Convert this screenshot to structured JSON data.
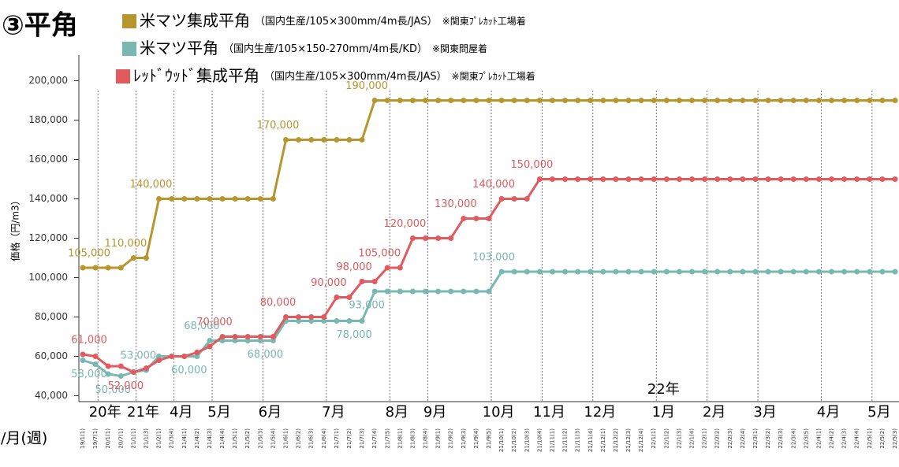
{
  "chart_data": {
    "type": "line",
    "title": "③平角",
    "y_label": "価格（円/m3）",
    "x_label": "年/月(週)",
    "categories": [
      "19/1(1)",
      "19/7(1)",
      "20/1(1)",
      "20/7(1)",
      "21/1(1)",
      "21/1(3)",
      "21/2(1)",
      "21/3(4)",
      "21/4(1)",
      "21/4(2)",
      "21/4(3)",
      "21/4(4)",
      "21/5(1)",
      "21/5(2)",
      "21/5(3)",
      "21/5(4)",
      "21/6(1)",
      "21/6(2)",
      "21/6(3)",
      "21/6(4)",
      "21/7(1)",
      "21/7(2)",
      "21/7(3)",
      "21/7(4)",
      "21/7(5)",
      "21/8(1)",
      "21/8(3)",
      "21/8(4)",
      "21/9(1)",
      "21/9(2)",
      "21/9(3)",
      "21/9(4)",
      "21/9(5)",
      "21/10(1)",
      "21/10(2)",
      "21/10(3)",
      "21/10(4)",
      "21/11(1)",
      "21/11(2)",
      "21/11(3)",
      "21/11(4)",
      "21/12(1)",
      "21/12(2)",
      "21/12(3)",
      "21/12(4)",
      "22/1(1)",
      "22/1(2)",
      "22/1(3)",
      "22/1(4)",
      "22/2(1)",
      "22/2(2)",
      "22/2(3)",
      "22/2(4)",
      "22/3(1)",
      "22/3(2)",
      "22/3(3)",
      "22/3(4)",
      "22/3(5)",
      "22/4(1)",
      "22/4(2)",
      "22/4(3)",
      "22/4(4)",
      "22/5(1)",
      "22/5(2)",
      "22/5(3)"
    ],
    "month_labels": [
      null,
      null,
      "20年",
      null,
      null,
      "21年",
      null,
      null,
      "4月",
      null,
      null,
      "5月",
      null,
      null,
      null,
      "6月",
      null,
      null,
      null,
      null,
      "7月",
      null,
      null,
      null,
      null,
      "8月",
      null,
      null,
      "9月",
      null,
      null,
      null,
      null,
      "10月",
      null,
      null,
      null,
      "11月",
      null,
      null,
      null,
      "12月",
      null,
      null,
      null,
      null,
      "1月",
      null,
      null,
      null,
      "2月",
      null,
      null,
      null,
      "3月",
      null,
      null,
      null,
      null,
      "4月",
      null,
      null,
      null,
      "5月",
      null,
      null
    ],
    "year_label": "22年",
    "ylim": [
      37000,
      213000
    ],
    "yticks": [
      {
        "value": 40000,
        "label": "40,000"
      },
      {
        "value": 60000,
        "label": "60,000"
      },
      {
        "value": 80000,
        "label": "80,000"
      },
      {
        "value": 100000,
        "label": "100,000"
      },
      {
        "value": 120000,
        "label": "120,000"
      },
      {
        "value": 140000,
        "label": "140,000"
      },
      {
        "value": 160000,
        "label": "160,000"
      },
      {
        "value": 180000,
        "label": "180,000"
      },
      {
        "value": 200000,
        "label": "200,000"
      }
    ],
    "vgrid": true,
    "series": [
      {
        "name": "米マツ集成平角",
        "spec": "（国内生産/105×300mm/4m長/JAS）",
        "note": "※関東ﾌﾟﾚｶｯﾄ工場着",
        "color": "#b8962e",
        "values": [
          105000,
          105000,
          105000,
          105000,
          110000,
          110000,
          140000,
          140000,
          140000,
          140000,
          140000,
          140000,
          140000,
          140000,
          140000,
          140000,
          170000,
          170000,
          170000,
          170000,
          170000,
          170000,
          170000,
          190000,
          190000,
          190000,
          190000,
          190000,
          190000,
          190000,
          190000,
          190000,
          190000,
          190000,
          190000,
          190000,
          190000,
          190000,
          190000,
          190000,
          190000,
          190000,
          190000,
          190000,
          190000,
          190000,
          190000,
          190000,
          190000,
          190000,
          190000,
          190000,
          190000,
          190000,
          190000,
          190000,
          190000,
          190000,
          190000,
          190000,
          190000,
          190000,
          190000,
          190000,
          190000
        ],
        "value_labels": [
          "105,000",
          null,
          null,
          null,
          "110,000",
          null,
          "140,000",
          null,
          null,
          null,
          null,
          null,
          null,
          null,
          null,
          null,
          "170,000",
          null,
          null,
          null,
          null,
          null,
          null,
          "190,000",
          null,
          null,
          null,
          null,
          null,
          null,
          null,
          null,
          null,
          null,
          null,
          null,
          null,
          null,
          null,
          null,
          null,
          null,
          null,
          null,
          null,
          null,
          null,
          null,
          null,
          null,
          null,
          null,
          null,
          null,
          null,
          null,
          null,
          null,
          null,
          null,
          null,
          null,
          null,
          null,
          null
        ]
      },
      {
        "name": "米マツ平角",
        "spec": "（国内生産/105×150-270mm/4m長/KD）",
        "note": "※関東問屋着",
        "color": "#79b8b2",
        "values": [
          58000,
          56000,
          51000,
          50000,
          52000,
          53000,
          60000,
          60000,
          60000,
          60000,
          68000,
          68000,
          68000,
          68000,
          68000,
          68000,
          78000,
          78000,
          78000,
          78000,
          78000,
          78000,
          78000,
          93000,
          93000,
          93000,
          93000,
          93000,
          93000,
          93000,
          93000,
          93000,
          93000,
          103000,
          103000,
          103000,
          103000,
          103000,
          103000,
          103000,
          103000,
          103000,
          103000,
          103000,
          103000,
          103000,
          103000,
          103000,
          103000,
          103000,
          103000,
          103000,
          103000,
          103000,
          103000,
          103000,
          103000,
          103000,
          103000,
          103000,
          103000,
          103000,
          103000,
          103000,
          103000
        ],
        "value_labels": [
          "58,000",
          null,
          null,
          "50,000",
          null,
          "53,000",
          null,
          null,
          null,
          "60,000",
          "68,000",
          null,
          null,
          null,
          null,
          "68,000",
          null,
          null,
          null,
          null,
          null,
          null,
          "78,000",
          "93,000",
          null,
          null,
          null,
          null,
          null,
          null,
          null,
          null,
          null,
          "103,000",
          null,
          null,
          null,
          null,
          null,
          null,
          null,
          null,
          null,
          null,
          null,
          null,
          null,
          null,
          null,
          null,
          null,
          null,
          null,
          null,
          null,
          null,
          null,
          null,
          null,
          null,
          null,
          null,
          null,
          null,
          null
        ]
      },
      {
        "name": "ﾚｯﾄﾞｳｯﾄﾞ集成平角",
        "spec": "（国内生産/105×300mm/4m長/JAS）",
        "note": "※関東ﾌﾟﾚｶｯﾄ工場着",
        "color": "#e05a5e",
        "values": [
          61000,
          60000,
          55000,
          55000,
          52000,
          54000,
          58000,
          60000,
          60000,
          62000,
          65000,
          70000,
          70000,
          70000,
          70000,
          70000,
          80000,
          80000,
          80000,
          80000,
          90000,
          90000,
          98000,
          98000,
          105000,
          105000,
          120000,
          120000,
          120000,
          120000,
          130000,
          130000,
          130000,
          140000,
          140000,
          140000,
          150000,
          150000,
          150000,
          150000,
          150000,
          150000,
          150000,
          150000,
          150000,
          150000,
          150000,
          150000,
          150000,
          150000,
          150000,
          150000,
          150000,
          150000,
          150000,
          150000,
          150000,
          150000,
          150000,
          150000,
          150000,
          150000,
          150000,
          150000,
          150000
        ],
        "value_labels": [
          "61,000",
          null,
          null,
          null,
          "52,000",
          null,
          null,
          null,
          null,
          null,
          null,
          "70,000",
          null,
          null,
          null,
          null,
          "80,000",
          null,
          null,
          null,
          "90,000",
          null,
          "98,000",
          null,
          "105,000",
          null,
          "120,000",
          null,
          null,
          null,
          "130,000",
          null,
          null,
          "140,000",
          null,
          null,
          "150,000",
          null,
          null,
          null,
          null,
          null,
          null,
          null,
          null,
          null,
          null,
          null,
          null,
          null,
          null,
          null,
          null,
          null,
          null,
          null,
          null,
          null,
          null,
          null,
          null,
          null,
          null,
          null,
          null
        ]
      }
    ]
  }
}
